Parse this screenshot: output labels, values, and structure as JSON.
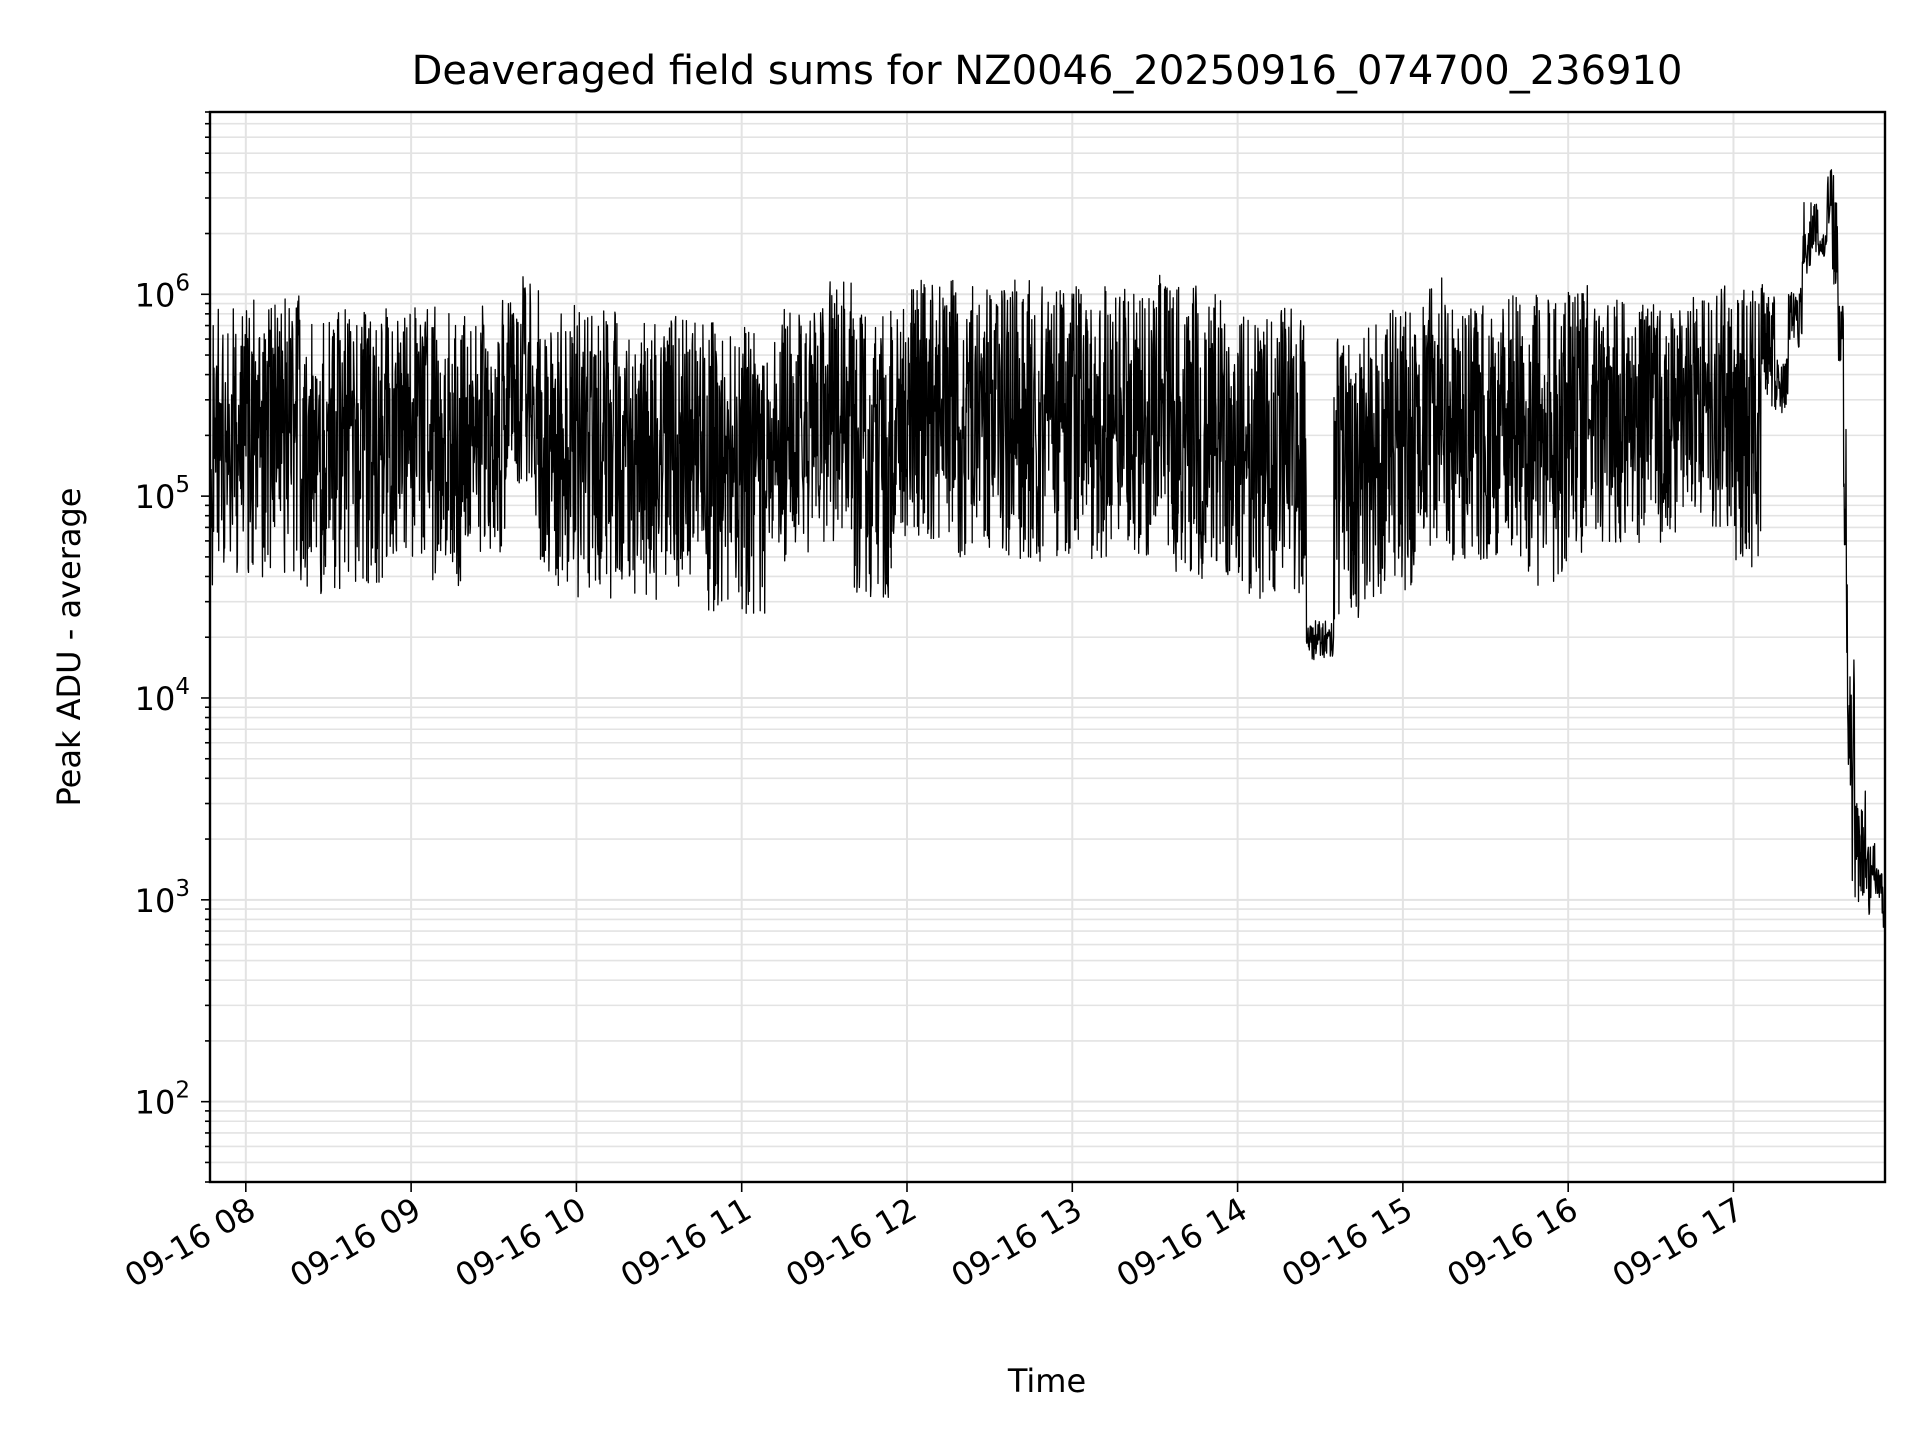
{
  "chart_data": {
    "type": "line",
    "title": "Deaveraged field sums for NZ0046_20250916_074700_236910",
    "xlabel": "Time",
    "ylabel": "Peak ADU - average",
    "yscale": "log",
    "ylim": [
      40,
      8000000
    ],
    "xlim": [
      "2025-09-16 07:47",
      "2025-09-16 17:55"
    ],
    "grid": true,
    "x_ticks": [
      {
        "label": "09-16 08",
        "value": "2025-09-16 08:00"
      },
      {
        "label": "09-16 09",
        "value": "2025-09-16 09:00"
      },
      {
        "label": "09-16 10",
        "value": "2025-09-16 10:00"
      },
      {
        "label": "09-16 11",
        "value": "2025-09-16 11:00"
      },
      {
        "label": "09-16 12",
        "value": "2025-09-16 12:00"
      },
      {
        "label": "09-16 13",
        "value": "2025-09-16 13:00"
      },
      {
        "label": "09-16 14",
        "value": "2025-09-16 14:00"
      },
      {
        "label": "09-16 15",
        "value": "2025-09-16 15:00"
      },
      {
        "label": "09-16 16",
        "value": "2025-09-16 16:00"
      },
      {
        "label": "09-16 17",
        "value": "2025-09-16 17:00"
      }
    ],
    "y_ticks": [
      {
        "base": "10",
        "exp": "2",
        "value": 100
      },
      {
        "base": "10",
        "exp": "3",
        "value": 1000
      },
      {
        "base": "10",
        "exp": "4",
        "value": 10000
      },
      {
        "base": "10",
        "exp": "5",
        "value": 100000
      },
      {
        "base": "10",
        "exp": "6",
        "value": 1000000
      }
    ],
    "series": [
      {
        "color": "#000000",
        "points": [
          [
            "2025-09-16 07:47",
            150000
          ],
          [
            "2025-09-16 07:48",
            30000
          ],
          [
            "2025-09-16 07:50",
            1000000
          ],
          [
            "2025-09-16 07:52",
            40000
          ],
          [
            "2025-09-16 07:55",
            1050000
          ],
          [
            "2025-09-16 07:58",
            35000
          ],
          [
            "2025-09-16 08:05",
            1200000
          ],
          [
            "2025-09-16 08:10",
            32000
          ],
          [
            "2025-09-16 08:15",
            1500000
          ],
          [
            "2025-09-16 08:20",
            30000
          ],
          [
            "2025-09-16 08:25",
            1000000
          ],
          [
            "2025-09-16 08:30",
            25000
          ],
          [
            "2025-09-16 08:35",
            1100000
          ],
          [
            "2025-09-16 08:40",
            30000
          ],
          [
            "2025-09-16 08:50",
            1000000
          ],
          [
            "2025-09-16 08:55",
            40000
          ],
          [
            "2025-09-16 09:05",
            1050000
          ],
          [
            "2025-09-16 09:10",
            30000
          ],
          [
            "2025-09-16 09:20",
            1000000
          ],
          [
            "2025-09-16 09:25",
            45000
          ],
          [
            "2025-09-16 09:35",
            1100000
          ],
          [
            "2025-09-16 09:40",
            100000
          ],
          [
            "2025-09-16 09:45",
            1500000
          ],
          [
            "2025-09-16 09:50",
            30000
          ],
          [
            "2025-09-16 10:00",
            1100000
          ],
          [
            "2025-09-16 10:05",
            25000
          ],
          [
            "2025-09-16 10:15",
            1000000
          ],
          [
            "2025-09-16 10:20",
            25000
          ],
          [
            "2025-09-16 10:30",
            900000
          ],
          [
            "2025-09-16 10:35",
            30000
          ],
          [
            "2025-09-16 10:45",
            1000000
          ],
          [
            "2025-09-16 10:50",
            20000
          ],
          [
            "2025-09-16 10:55",
            800000
          ],
          [
            "2025-09-16 11:00",
            20000
          ],
          [
            "2025-09-16 11:10",
            900000
          ],
          [
            "2025-09-16 11:15",
            40000
          ],
          [
            "2025-09-16 11:25",
            1000000
          ],
          [
            "2025-09-16 11:30",
            50000
          ],
          [
            "2025-09-16 11:40",
            1400000
          ],
          [
            "2025-09-16 11:45",
            20000
          ],
          [
            "2025-09-16 11:55",
            1300000
          ],
          [
            "2025-09-16 12:05",
            50000
          ],
          [
            "2025-09-16 12:15",
            1400000
          ],
          [
            "2025-09-16 12:25",
            40000
          ],
          [
            "2025-09-16 12:35",
            1450000
          ],
          [
            "2025-09-16 12:45",
            40000
          ],
          [
            "2025-09-16 12:55",
            1300000
          ],
          [
            "2025-09-16 13:05",
            40000
          ],
          [
            "2025-09-16 13:15",
            1300000
          ],
          [
            "2025-09-16 13:25",
            40000
          ],
          [
            "2025-09-16 13:35",
            1500000
          ],
          [
            "2025-09-16 13:45",
            30000
          ],
          [
            "2025-09-16 13:55",
            1200000
          ],
          [
            "2025-09-16 14:05",
            20000
          ],
          [
            "2025-09-16 14:15",
            1100000
          ],
          [
            "2025-09-16 14:25",
            25000
          ],
          [
            "2025-09-16 14:35",
            15000
          ],
          [
            "2025-09-16 14:45",
            1000000
          ],
          [
            "2025-09-16 14:55",
            20000
          ],
          [
            "2025-09-16 15:05",
            1600000
          ],
          [
            "2025-09-16 15:15",
            40000
          ],
          [
            "2025-09-16 15:25",
            1100000
          ],
          [
            "2025-09-16 15:35",
            40000
          ],
          [
            "2025-09-16 15:45",
            1200000
          ],
          [
            "2025-09-16 15:55",
            30000
          ],
          [
            "2025-09-16 16:05",
            1300000
          ],
          [
            "2025-09-16 16:15",
            50000
          ],
          [
            "2025-09-16 16:25",
            1100000
          ],
          [
            "2025-09-16 16:35",
            50000
          ],
          [
            "2025-09-16 16:45",
            1200000
          ],
          [
            "2025-09-16 16:55",
            60000
          ],
          [
            "2025-09-16 17:00",
            1300000
          ],
          [
            "2025-09-16 17:05",
            35000
          ],
          [
            "2025-09-16 17:10",
            1300000
          ],
          [
            "2025-09-16 17:15",
            250000
          ],
          [
            "2025-09-16 17:20",
            500000
          ],
          [
            "2025-09-16 17:25",
            1200000
          ],
          [
            "2025-09-16 17:28",
            3000000
          ],
          [
            "2025-09-16 17:31",
            1500000
          ],
          [
            "2025-09-16 17:34",
            2000000
          ],
          [
            "2025-09-16 17:36",
            4500000
          ],
          [
            "2025-09-16 17:38",
            1000000
          ],
          [
            "2025-09-16 17:40",
            300000
          ],
          [
            "2025-09-16 17:41",
            50000
          ],
          [
            "2025-09-16 17:42",
            3000
          ],
          [
            "2025-09-16 17:43",
            20000
          ],
          [
            "2025-09-16 17:44",
            600
          ],
          [
            "2025-09-16 17:46",
            4000
          ],
          [
            "2025-09-16 17:48",
            800
          ],
          [
            "2025-09-16 17:50",
            2000
          ],
          [
            "2025-09-16 17:52",
            1000
          ],
          [
            "2025-09-16 17:54",
            1500
          ],
          [
            "2025-09-16 17:55",
            700
          ]
        ]
      }
    ]
  }
}
